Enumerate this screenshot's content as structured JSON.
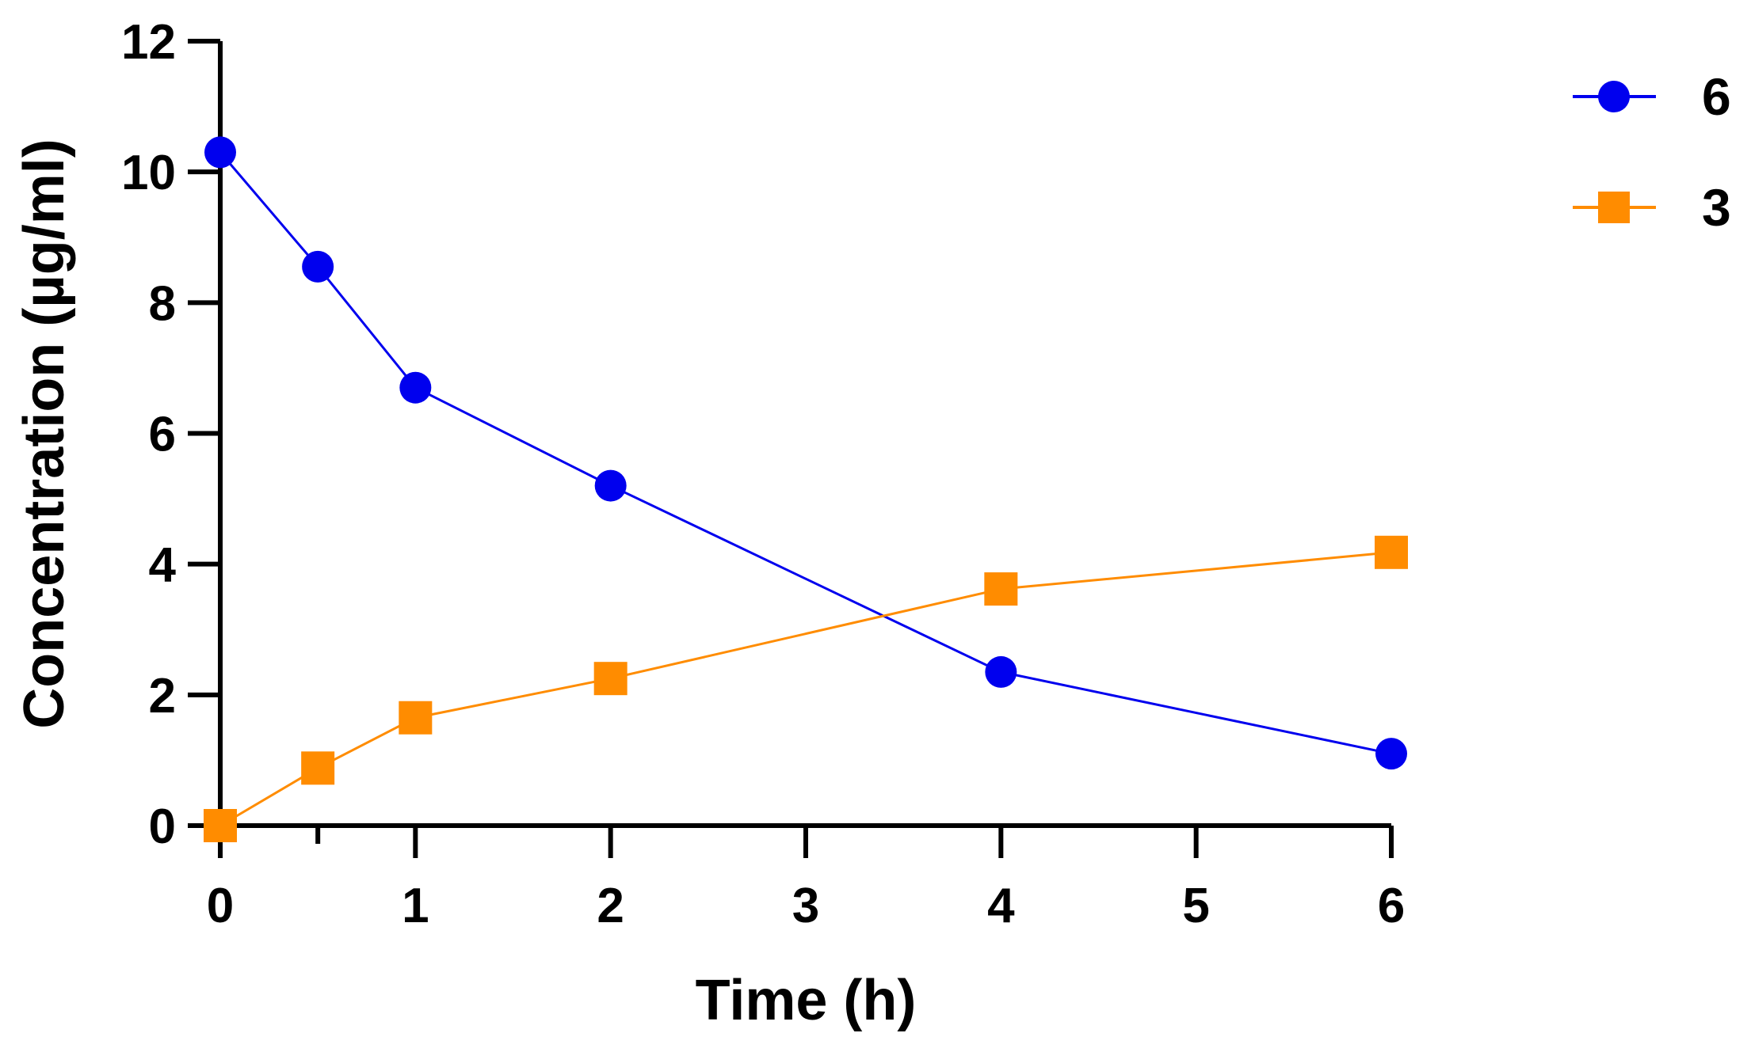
{
  "chart_data": {
    "type": "line",
    "title": "",
    "xlabel": "Time (h)",
    "ylabel": "Concentration (µg/ml)",
    "xlim": [
      0,
      6
    ],
    "ylim": [
      0,
      12
    ],
    "x_ticks": [
      0,
      1,
      2,
      3,
      4,
      5,
      6
    ],
    "x_tick_labels": [
      "0",
      "1",
      "2",
      "3",
      "4",
      "5",
      "6"
    ],
    "x_minor_ticks": [
      0.5
    ],
    "y_ticks": [
      0,
      2,
      4,
      6,
      8,
      10,
      12
    ],
    "y_tick_labels": [
      "0",
      "2",
      "4",
      "6",
      "8",
      "10",
      "12"
    ],
    "grid": false,
    "legend_position": "top-right",
    "x": [
      0,
      0.5,
      1,
      2,
      4,
      6
    ],
    "series": [
      {
        "name": "6",
        "marker": "circle",
        "color": "#0000ee",
        "values": [
          10.3,
          8.55,
          6.7,
          5.2,
          2.35,
          1.1
        ]
      },
      {
        "name": "3",
        "marker": "square",
        "color": "#ff8c00",
        "values": [
          0,
          0.88,
          1.65,
          2.25,
          3.62,
          4.18
        ]
      }
    ]
  }
}
